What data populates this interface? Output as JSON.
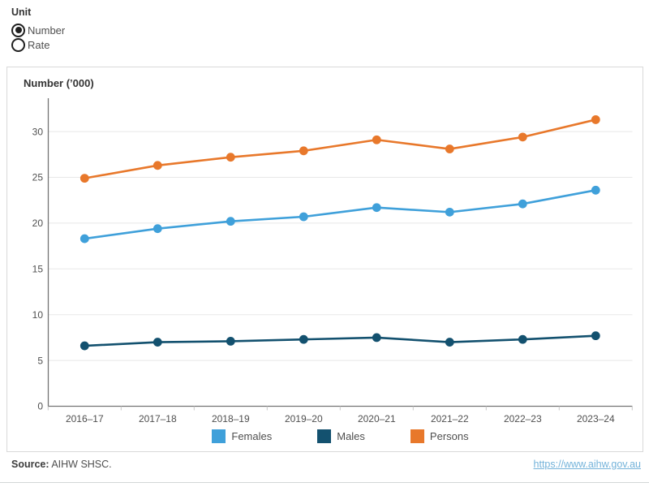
{
  "unit_control": {
    "label": "Unit",
    "options": [
      {
        "label": "Number",
        "selected": true
      },
      {
        "label": "Rate",
        "selected": false
      }
    ]
  },
  "chart": {
    "title": "Number (’000)"
  },
  "chart_data": {
    "type": "line",
    "title": "Number (’000)",
    "ylabel": "Number (’000)",
    "xlabel": "",
    "categories": [
      "2016–17",
      "2017–18",
      "2018–19",
      "2019–20",
      "2020–21",
      "2021–22",
      "2022–23",
      "2023–24"
    ],
    "series": [
      {
        "name": "Females",
        "color": "#3FA0DA",
        "values": [
          18.3,
          19.4,
          20.2,
          20.7,
          21.7,
          21.2,
          22.1,
          23.6
        ]
      },
      {
        "name": "Males",
        "color": "#13516F",
        "values": [
          6.6,
          7.0,
          7.1,
          7.3,
          7.5,
          7.0,
          7.3,
          7.7
        ]
      },
      {
        "name": "Persons",
        "color": "#E8782B",
        "values": [
          24.9,
          26.3,
          27.2,
          27.9,
          29.1,
          28.1,
          29.4,
          31.3
        ]
      }
    ],
    "ylim": [
      0,
      33.6
    ],
    "yticks": [
      0,
      5,
      10,
      15,
      20,
      25,
      30
    ],
    "grid": true,
    "legend_position": "bottom"
  },
  "footer": {
    "source_label": "Source:",
    "source_text": " AIHW SHSC.",
    "link": "https://www.aihw.gov.au"
  }
}
